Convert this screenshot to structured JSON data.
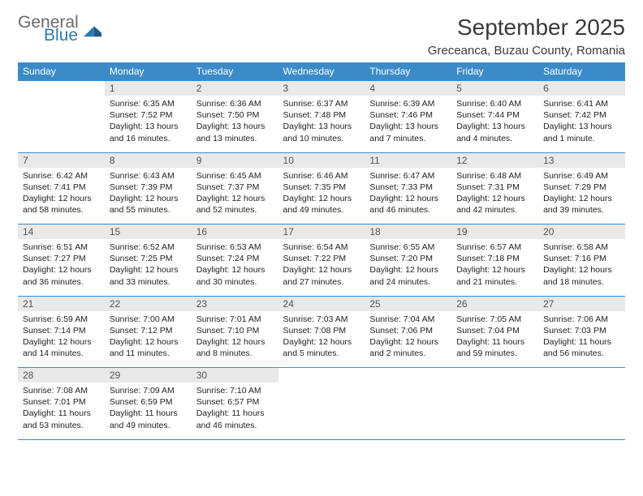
{
  "logo": {
    "general": "General",
    "blue": "Blue"
  },
  "title": "September 2025",
  "location": "Greceanca, Buzau County, Romania",
  "colors": {
    "header_bg": "#3b8bc8",
    "header_text": "#ffffff",
    "daynum_bg": "#e9e9e9",
    "border": "#3b8bc8",
    "logo_gray": "#6b6b6b",
    "logo_blue": "#2a7ab8",
    "text": "#222222"
  },
  "day_headers": [
    "Sunday",
    "Monday",
    "Tuesday",
    "Wednesday",
    "Thursday",
    "Friday",
    "Saturday"
  ],
  "weeks": [
    [
      null,
      {
        "n": "1",
        "sr": "6:35 AM",
        "ss": "7:52 PM",
        "dl": "13 hours and 16 minutes."
      },
      {
        "n": "2",
        "sr": "6:36 AM",
        "ss": "7:50 PM",
        "dl": "13 hours and 13 minutes."
      },
      {
        "n": "3",
        "sr": "6:37 AM",
        "ss": "7:48 PM",
        "dl": "13 hours and 10 minutes."
      },
      {
        "n": "4",
        "sr": "6:39 AM",
        "ss": "7:46 PM",
        "dl": "13 hours and 7 minutes."
      },
      {
        "n": "5",
        "sr": "6:40 AM",
        "ss": "7:44 PM",
        "dl": "13 hours and 4 minutes."
      },
      {
        "n": "6",
        "sr": "6:41 AM",
        "ss": "7:42 PM",
        "dl": "13 hours and 1 minute."
      }
    ],
    [
      {
        "n": "7",
        "sr": "6:42 AM",
        "ss": "7:41 PM",
        "dl": "12 hours and 58 minutes."
      },
      {
        "n": "8",
        "sr": "6:43 AM",
        "ss": "7:39 PM",
        "dl": "12 hours and 55 minutes."
      },
      {
        "n": "9",
        "sr": "6:45 AM",
        "ss": "7:37 PM",
        "dl": "12 hours and 52 minutes."
      },
      {
        "n": "10",
        "sr": "6:46 AM",
        "ss": "7:35 PM",
        "dl": "12 hours and 49 minutes."
      },
      {
        "n": "11",
        "sr": "6:47 AM",
        "ss": "7:33 PM",
        "dl": "12 hours and 46 minutes."
      },
      {
        "n": "12",
        "sr": "6:48 AM",
        "ss": "7:31 PM",
        "dl": "12 hours and 42 minutes."
      },
      {
        "n": "13",
        "sr": "6:49 AM",
        "ss": "7:29 PM",
        "dl": "12 hours and 39 minutes."
      }
    ],
    [
      {
        "n": "14",
        "sr": "6:51 AM",
        "ss": "7:27 PM",
        "dl": "12 hours and 36 minutes."
      },
      {
        "n": "15",
        "sr": "6:52 AM",
        "ss": "7:25 PM",
        "dl": "12 hours and 33 minutes."
      },
      {
        "n": "16",
        "sr": "6:53 AM",
        "ss": "7:24 PM",
        "dl": "12 hours and 30 minutes."
      },
      {
        "n": "17",
        "sr": "6:54 AM",
        "ss": "7:22 PM",
        "dl": "12 hours and 27 minutes."
      },
      {
        "n": "18",
        "sr": "6:55 AM",
        "ss": "7:20 PM",
        "dl": "12 hours and 24 minutes."
      },
      {
        "n": "19",
        "sr": "6:57 AM",
        "ss": "7:18 PM",
        "dl": "12 hours and 21 minutes."
      },
      {
        "n": "20",
        "sr": "6:58 AM",
        "ss": "7:16 PM",
        "dl": "12 hours and 18 minutes."
      }
    ],
    [
      {
        "n": "21",
        "sr": "6:59 AM",
        "ss": "7:14 PM",
        "dl": "12 hours and 14 minutes."
      },
      {
        "n": "22",
        "sr": "7:00 AM",
        "ss": "7:12 PM",
        "dl": "12 hours and 11 minutes."
      },
      {
        "n": "23",
        "sr": "7:01 AM",
        "ss": "7:10 PM",
        "dl": "12 hours and 8 minutes."
      },
      {
        "n": "24",
        "sr": "7:03 AM",
        "ss": "7:08 PM",
        "dl": "12 hours and 5 minutes."
      },
      {
        "n": "25",
        "sr": "7:04 AM",
        "ss": "7:06 PM",
        "dl": "12 hours and 2 minutes."
      },
      {
        "n": "26",
        "sr": "7:05 AM",
        "ss": "7:04 PM",
        "dl": "11 hours and 59 minutes."
      },
      {
        "n": "27",
        "sr": "7:06 AM",
        "ss": "7:03 PM",
        "dl": "11 hours and 56 minutes."
      }
    ],
    [
      {
        "n": "28",
        "sr": "7:08 AM",
        "ss": "7:01 PM",
        "dl": "11 hours and 53 minutes."
      },
      {
        "n": "29",
        "sr": "7:09 AM",
        "ss": "6:59 PM",
        "dl": "11 hours and 49 minutes."
      },
      {
        "n": "30",
        "sr": "7:10 AM",
        "ss": "6:57 PM",
        "dl": "11 hours and 46 minutes."
      },
      null,
      null,
      null,
      null
    ]
  ],
  "labels": {
    "sunrise": "Sunrise: ",
    "sunset": "Sunset: ",
    "daylight": "Daylight: "
  }
}
